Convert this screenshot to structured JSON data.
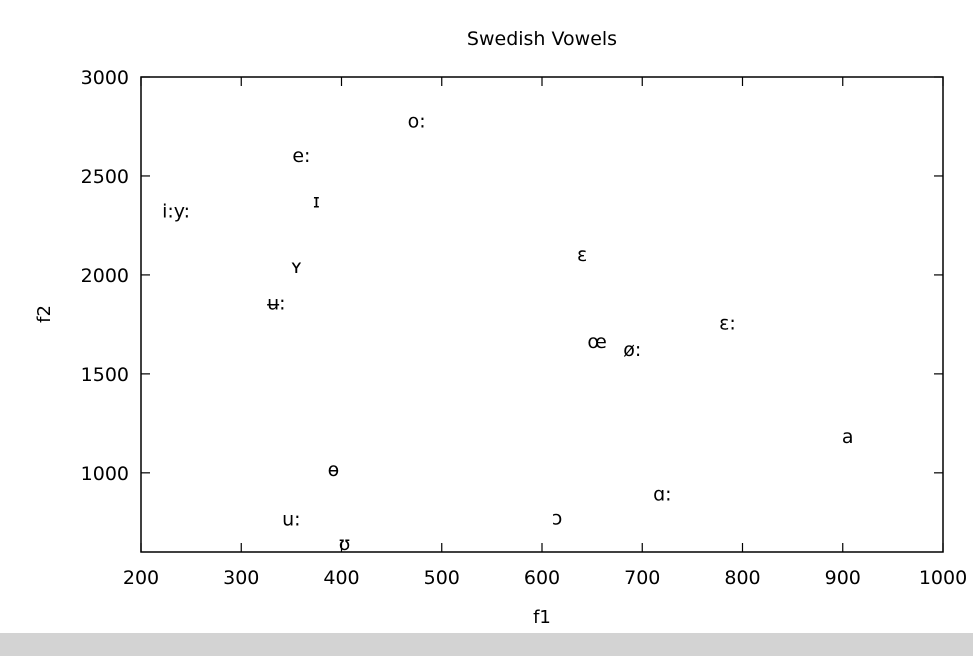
{
  "chart_data": {
    "type": "scatter",
    "title": "Swedish Vowels",
    "xlabel": "f1",
    "ylabel": "f2",
    "xlim": [
      200,
      1000
    ],
    "ylim": [
      600,
      3000
    ],
    "xticks": [
      "200",
      "300",
      "400",
      "500",
      "600",
      "700",
      "800",
      "900",
      "1000"
    ],
    "yticks": [
      "1000",
      "1500",
      "2000",
      "2500",
      "3000"
    ],
    "grid": false,
    "points": [
      {
        "label": "o:",
        "x": 475,
        "y": 2780
      },
      {
        "label": "e:",
        "x": 360,
        "y": 2605
      },
      {
        "label": "ɪ",
        "x": 375,
        "y": 2375
      },
      {
        "label": "i:y:",
        "x": 235,
        "y": 2325
      },
      {
        "label": "ʏ",
        "x": 355,
        "y": 2045
      },
      {
        "label": "ʉ:",
        "x": 335,
        "y": 1860
      },
      {
        "label": "ɛ",
        "x": 640,
        "y": 2105
      },
      {
        "label": "ɛ:",
        "x": 785,
        "y": 1760
      },
      {
        "label": "œ",
        "x": 655,
        "y": 1665
      },
      {
        "label": "ø:",
        "x": 690,
        "y": 1625
      },
      {
        "label": "a",
        "x": 905,
        "y": 1185
      },
      {
        "label": "ɵ",
        "x": 392,
        "y": 1020
      },
      {
        "label": "ɑ:",
        "x": 720,
        "y": 895
      },
      {
        "label": "u:",
        "x": 350,
        "y": 770
      },
      {
        "label": "ɔ",
        "x": 615,
        "y": 775
      },
      {
        "label": "ʊ",
        "x": 403,
        "y": 645
      }
    ]
  }
}
